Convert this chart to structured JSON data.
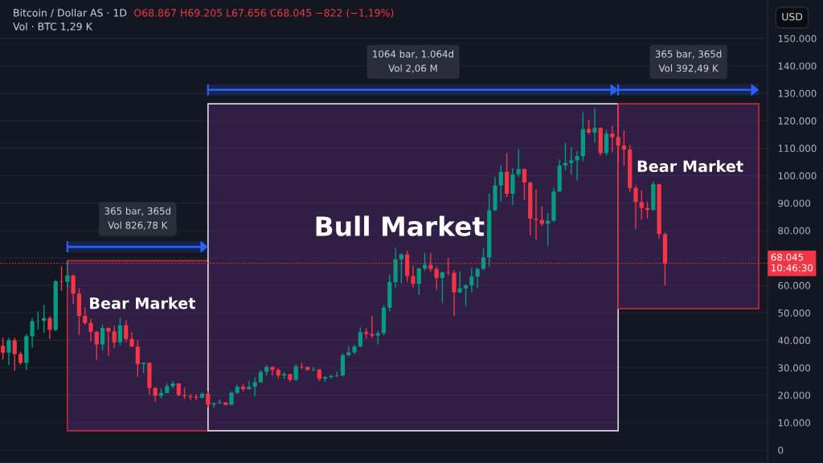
{
  "chart_data": {
    "type": "candlestick",
    "title": "Bitcoin / Dollar AS · 1D",
    "subtitle": "O68.867 H69.205 L67.656 C68.045 −822 (−1,19%)",
    "ylabel": "USD",
    "annotations": [
      "Vol · BTC 1,29 K",
      "Bear Market",
      "365 bar, 365d\nVol 826,78 K",
      "Bull Market",
      "1064 bar, 1.064d\nVol 2,06 M",
      "Bear Market",
      "365 bar, 365d\nVol 392,49 K"
    ],
    "categories": [
      null,
      null,
      null,
      null,
      null,
      null,
      null,
      null,
      null,
      null,
      null,
      null,
      null,
      null,
      null,
      null,
      null,
      null,
      null,
      null,
      null,
      null,
      null,
      null,
      null,
      null,
      null,
      null,
      null,
      null,
      null,
      null,
      null,
      null,
      null,
      null,
      null,
      null,
      null,
      null,
      null,
      null,
      null,
      null,
      null,
      null,
      null,
      null,
      null,
      null,
      null,
      null,
      null,
      null,
      null,
      null,
      null,
      null,
      null,
      null,
      null,
      null,
      null,
      null,
      null,
      null,
      null,
      null,
      null,
      null,
      null,
      null,
      null,
      null,
      null,
      null,
      null,
      null,
      null,
      null,
      null,
      null,
      null,
      null,
      null,
      null,
      null,
      null,
      null,
      null,
      null,
      null,
      null,
      null,
      null,
      null,
      null,
      null,
      null,
      null,
      null,
      null,
      null,
      null,
      null,
      null,
      null,
      null,
      null,
      null,
      null,
      null,
      null,
      null,
      null,
      null,
      null,
      null,
      null,
      null,
      null,
      null,
      null,
      null,
      null,
      null,
      null,
      null,
      null,
      null,
      null
    ],
    "ohlc": [
      [
        38000,
        41000,
        33000,
        35500
      ],
      [
        35500,
        41000,
        31000,
        40000
      ],
      [
        40000,
        41000,
        28800,
        35000
      ],
      [
        35000,
        35900,
        31000,
        31800
      ],
      [
        31800,
        42300,
        29300,
        41500
      ],
      [
        41500,
        48100,
        37300,
        47000
      ],
      [
        47000,
        50500,
        44000,
        47100
      ],
      [
        47100,
        52900,
        42800,
        48100
      ],
      [
        48100,
        48800,
        40500,
        43800
      ],
      [
        43800,
        62000,
        43300,
        61500
      ],
      [
        61500,
        67000,
        58000,
        61300
      ],
      [
        61300,
        69000,
        59000,
        63600
      ],
      [
        63600,
        64000,
        53300,
        57000
      ],
      [
        57000,
        59000,
        42000,
        48900
      ],
      [
        48900,
        52000,
        45500,
        46300
      ],
      [
        46300,
        47900,
        39600,
        43100
      ],
      [
        43100,
        43500,
        32900,
        38500
      ],
      [
        38500,
        45800,
        36300,
        44500
      ],
      [
        44500,
        44700,
        34300,
        43200
      ],
      [
        43200,
        45400,
        37200,
        39300
      ],
      [
        39300,
        48200,
        38200,
        45500
      ],
      [
        45500,
        47300,
        39300,
        40500
      ],
      [
        40500,
        42900,
        37600,
        37700
      ],
      [
        37700,
        40000,
        26700,
        31300
      ],
      [
        31300,
        32000,
        28000,
        31800
      ],
      [
        31800,
        31900,
        20100,
        22600
      ],
      [
        22600,
        23000,
        17600,
        19800
      ],
      [
        19800,
        22500,
        18800,
        20800
      ],
      [
        20800,
        24400,
        20700,
        23300
      ],
      [
        23300,
        25200,
        22400,
        24300
      ],
      [
        24300,
        24400,
        19600,
        20000
      ],
      [
        20000,
        22800,
        18600,
        19700
      ],
      [
        19700,
        20400,
        18200,
        19400
      ],
      [
        19400,
        20500,
        18200,
        19100
      ],
      [
        19100,
        21000,
        18700,
        20500
      ],
      [
        20500,
        21500,
        15500,
        16600
      ],
      [
        16600,
        17200,
        15500,
        17100
      ],
      [
        17100,
        18400,
        16800,
        17400
      ],
      [
        17400,
        17500,
        16300,
        16500
      ],
      [
        16500,
        21300,
        16500,
        20900
      ],
      [
        20900,
        23800,
        20500,
        23100
      ],
      [
        23100,
        24200,
        21400,
        22200
      ],
      [
        22200,
        25200,
        22000,
        23100
      ],
      [
        23100,
        26500,
        19600,
        24700
      ],
      [
        24700,
        29200,
        24500,
        28500
      ],
      [
        28500,
        31000,
        27200,
        30300
      ],
      [
        30300,
        30500,
        27000,
        29200
      ],
      [
        29200,
        29800,
        26000,
        27200
      ],
      [
        27200,
        28400,
        25900,
        27700
      ],
      [
        27700,
        27800,
        24800,
        25600
      ],
      [
        25600,
        31400,
        25200,
        30500
      ],
      [
        30500,
        31800,
        29600,
        30300
      ],
      [
        30300,
        30400,
        28900,
        29200
      ],
      [
        29200,
        30200,
        28700,
        29400
      ],
      [
        29400,
        29500,
        25200,
        26000
      ],
      [
        26000,
        26900,
        24900,
        26600
      ],
      [
        26600,
        27500,
        26000,
        27000
      ],
      [
        27000,
        28600,
        26600,
        27200
      ],
      [
        27200,
        35200,
        26900,
        34600
      ],
      [
        34600,
        37900,
        34100,
        35600
      ],
      [
        35600,
        38400,
        35000,
        37700
      ],
      [
        37700,
        44700,
        37600,
        43000
      ],
      [
        43000,
        44400,
        40600,
        42300
      ],
      [
        42300,
        49000,
        40800,
        41700
      ],
      [
        41700,
        43500,
        38500,
        42600
      ],
      [
        42600,
        52800,
        41800,
        51900
      ],
      [
        51900,
        64000,
        50600,
        61200
      ],
      [
        61200,
        73700,
        59000,
        69500
      ],
      [
        69500,
        71700,
        60800,
        71300
      ],
      [
        71300,
        72700,
        61300,
        63400
      ],
      [
        63400,
        67200,
        59200,
        60600
      ],
      [
        60600,
        66500,
        56500,
        66200
      ],
      [
        66200,
        71900,
        65300,
        67500
      ],
      [
        67500,
        71900,
        65000,
        66000
      ],
      [
        66000,
        66900,
        58400,
        62700
      ],
      [
        62700,
        64900,
        53500,
        64800
      ],
      [
        64800,
        70000,
        63600,
        64600
      ],
      [
        64600,
        65600,
        49000,
        57500
      ],
      [
        57500,
        65000,
        57100,
        58900
      ],
      [
        58900,
        60600,
        52500,
        60000
      ],
      [
        60000,
        66500,
        57500,
        63300
      ],
      [
        63300,
        66500,
        58900,
        66000
      ],
      [
        66000,
        73600,
        65500,
        70200
      ],
      [
        70200,
        93400,
        66800,
        87400
      ],
      [
        87400,
        99600,
        87100,
        96400
      ],
      [
        96400,
        103800,
        90500,
        101400
      ],
      [
        101400,
        108300,
        92200,
        93400
      ],
      [
        93400,
        102700,
        89300,
        100500
      ],
      [
        100500,
        109600,
        99500,
        102400
      ],
      [
        102400,
        102500,
        91200,
        97500
      ],
      [
        97500,
        97800,
        78200,
        84300
      ],
      [
        84300,
        95000,
        76600,
        83900
      ],
      [
        83900,
        88800,
        81600,
        82500
      ],
      [
        82500,
        86400,
        74500,
        83600
      ],
      [
        83600,
        95700,
        83100,
        94200
      ],
      [
        94200,
        105800,
        94000,
        103700
      ],
      [
        103700,
        112000,
        102000,
        104600
      ],
      [
        104600,
        110500,
        100400,
        105600
      ],
      [
        105600,
        108900,
        98200,
        107100
      ],
      [
        107100,
        123200,
        105200,
        117000
      ],
      [
        117000,
        120200,
        115000,
        115700
      ],
      [
        115700,
        124500,
        112000,
        117400
      ],
      [
        117400,
        117600,
        107300,
        108200
      ],
      [
        108200,
        116800,
        107300,
        115300
      ],
      [
        115300,
        118000,
        108600,
        114000
      ],
      [
        114000,
        126200,
        104600,
        111000
      ],
      [
        111000,
        116400,
        103500,
        109500
      ],
      [
        109500,
        111200,
        94000,
        95500
      ],
      [
        95500,
        96600,
        80500,
        90400
      ],
      [
        90400,
        94600,
        84000,
        88200
      ],
      [
        88200,
        90600,
        84400,
        87500
      ],
      [
        87500,
        97900,
        87200,
        96900
      ],
      [
        96900,
        97000,
        77000,
        78700
      ],
      [
        78700,
        79400,
        60000,
        68045
      ],
      null,
      null,
      null,
      null,
      null,
      null,
      null,
      null,
      null,
      null,
      null,
      null,
      null,
      null,
      null,
      null,
      null
    ],
    "colors": [
      "#f23645",
      "#089981",
      "#f23645",
      "#f23645",
      "#089981",
      "#089981",
      "#089981",
      "#089981",
      "#f23645",
      "#089981",
      "#f23645",
      "#089981",
      "#f23645",
      "#f23645",
      "#f23645",
      "#f23645",
      "#f23645",
      "#089981",
      "#f23645",
      "#f23645",
      "#089981",
      "#f23645",
      "#f23645",
      "#f23645",
      "#089981",
      "#f23645",
      "#f23645",
      "#089981",
      "#089981",
      "#089981",
      "#f23645",
      "#f23645",
      "#f23645",
      "#f23645",
      "#089981",
      "#f23645",
      "#089981",
      "#089981",
      "#f23645",
      "#089981",
      "#089981",
      "#f23645",
      "#089981",
      "#089981",
      "#089981",
      "#089981",
      "#f23645",
      "#f23645",
      "#089981",
      "#f23645",
      "#089981",
      "#f23645",
      "#f23645",
      "#089981",
      "#f23645",
      "#089981",
      "#089981",
      "#089981",
      "#089981",
      "#089981",
      "#089981",
      "#089981",
      "#f23645",
      "#f23645",
      "#089981",
      "#089981",
      "#089981",
      "#089981",
      "#089981",
      "#f23645",
      "#f23645",
      "#089981",
      "#089981",
      "#f23645",
      "#f23645",
      "#089981",
      "#f23645",
      "#f23645",
      "#089981",
      "#089981",
      "#089981",
      "#089981",
      "#089981",
      "#089981",
      "#089981",
      "#089981",
      "#f23645",
      "#089981",
      "#089981",
      "#f23645",
      "#f23645",
      "#f23645",
      "#f23645",
      "#089981",
      "#089981",
      "#089981",
      "#089981",
      "#089981",
      "#089981",
      "#089981",
      "#f23645",
      "#089981",
      "#f23645",
      "#089981",
      "#f23645",
      "#f23645",
      "#f23645",
      "#f23645",
      "#f23645",
      "#f23645",
      "#f23645",
      "#089981",
      "#f23645",
      "#f23645",
      null,
      null,
      null,
      null,
      null,
      null,
      null,
      null,
      null,
      null,
      null,
      null,
      null,
      null,
      null,
      null,
      null
    ],
    "ylim": [
      -4700,
      164000
    ],
    "yticks": [
      0,
      {
        "value": 10000,
        "label": "10.000"
      },
      {
        "value": 20000,
        "label": "20.000"
      },
      {
        "value": 30000,
        "label": "30.000"
      },
      {
        "value": 40000,
        "label": "40.000"
      },
      {
        "value": 50000,
        "label": "50.000"
      },
      {
        "value": 60000,
        "label": "60.000"
      },
      {
        "value": 70000,
        "label": null
      },
      {
        "value": 80000,
        "label": "80.000"
      },
      {
        "value": 90000,
        "label": "90.000"
      },
      {
        "value": 100000,
        "label": "100.000"
      },
      {
        "value": 110000,
        "label": "110.000"
      },
      {
        "value": 120000,
        "label": "120.000"
      },
      {
        "value": 130000,
        "label": "130.000"
      },
      {
        "value": 140000,
        "label": "140.000"
      },
      {
        "value": 150000,
        "label": "150.000"
      }
    ],
    "grid": "y",
    "tick_labels": "y",
    "ref_lines": [
      {
        "axis": "y",
        "value": 68045,
        "label": "68.045\n10:46:30",
        "color": "#f23645",
        "line_style": "dotted"
      }
    ]
  }
}
